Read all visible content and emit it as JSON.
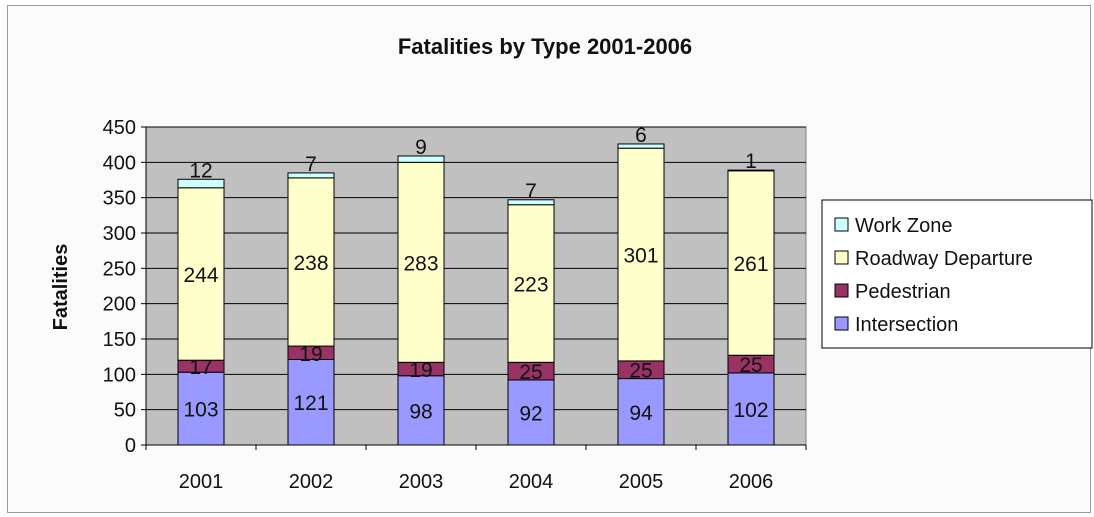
{
  "chart_data": {
    "type": "bar",
    "stacked": true,
    "title": "Fatalities by Type 2001-2006",
    "ylabel": "Fatalities",
    "xlabel": "",
    "ylim": [
      0,
      450
    ],
    "yticks": [
      0,
      50,
      100,
      150,
      200,
      250,
      300,
      350,
      400,
      450
    ],
    "grid": true,
    "legend_position": "right",
    "plot_background": "#c0c0c0",
    "categories": [
      "2001",
      "2002",
      "2003",
      "2004",
      "2005",
      "2006"
    ],
    "series": [
      {
        "name": "Intersection",
        "color": "#9999ff",
        "values": [
          103,
          121,
          98,
          92,
          94,
          102
        ]
      },
      {
        "name": "Pedestrian",
        "color": "#993366",
        "values": [
          17,
          19,
          19,
          25,
          25,
          25
        ]
      },
      {
        "name": "Roadway Departure",
        "color": "#ffffcc",
        "values": [
          244,
          238,
          283,
          223,
          301,
          261
        ]
      },
      {
        "name": "Work Zone",
        "color": "#ccffff",
        "values": [
          12,
          7,
          9,
          7,
          6,
          1
        ]
      }
    ],
    "legend_order": [
      "Work Zone",
      "Roadway Departure",
      "Pedestrian",
      "Intersection"
    ]
  }
}
